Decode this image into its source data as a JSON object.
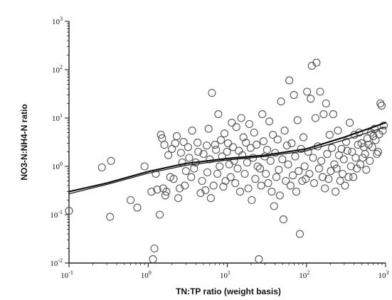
{
  "chart_data": {
    "type": "scatter",
    "title": "",
    "xlabel": "TN:TP ratio (weight basis)",
    "ylabel": "NO3-N:NH4-N ratio",
    "xscale": "log",
    "yscale": "log",
    "xlim": [
      0.1,
      1000
    ],
    "ylim": [
      0.01,
      1000
    ],
    "grid": false,
    "legend": "none",
    "x_ticks": [
      {
        "base": "10",
        "exp": "-1",
        "value": 0.1
      },
      {
        "base": "10",
        "exp": "0",
        "value": 1
      },
      {
        "base": "10",
        "exp": "1",
        "value": 10
      },
      {
        "base": "10",
        "exp": "2",
        "value": 100
      },
      {
        "base": "10",
        "exp": "3",
        "value": 1000
      }
    ],
    "y_ticks": [
      {
        "base": "10",
        "exp": "-2",
        "value": 0.01
      },
      {
        "base": "10",
        "exp": "-1",
        "value": 0.1
      },
      {
        "base": "10",
        "exp": "0",
        "value": 1
      },
      {
        "base": "10",
        "exp": "1",
        "value": 10
      },
      {
        "base": "10",
        "exp": "2",
        "value": 100
      },
      {
        "base": "10",
        "exp": "3",
        "value": 1000
      }
    ],
    "marker_color": "#555555",
    "line_color": "#111111",
    "series": [
      {
        "type": "scatter",
        "x": [
          0.1,
          0.26,
          0.33,
          0.34,
          0.6,
          0.73,
          0.9,
          1.1,
          1.15,
          1.2,
          1.25,
          1.3,
          1.4,
          1.45,
          1.5,
          1.55,
          1.6,
          1.65,
          1.7,
          1.8,
          1.9,
          2.0,
          2.1,
          2.2,
          2.3,
          2.4,
          2.5,
          2.6,
          2.7,
          2.8,
          2.9,
          3.0,
          3.2,
          3.3,
          3.5,
          3.6,
          3.8,
          4.0,
          4.2,
          4.3,
          4.6,
          4.8,
          5.0,
          5.3,
          5.5,
          5.6,
          5.8,
          6.0,
          6.2,
          6.4,
          6.7,
          7.0,
          7.2,
          7.5,
          7.7,
          8.0,
          8.3,
          8.6,
          8.9,
          9.2,
          9.5,
          9.9,
          10.2,
          10.6,
          11.0,
          11.4,
          11.8,
          12.2,
          12.6,
          13.0,
          13.5,
          14.0,
          14.5,
          15.0,
          15.5,
          16.0,
          16.6,
          17.2,
          17.8,
          18.4,
          19.0,
          19.7,
          20.4,
          21.1,
          21.8,
          22.6,
          23.4,
          24.2,
          25.0,
          25.9,
          26.8,
          27.7,
          28.7,
          29.7,
          30.7,
          31.8,
          32.9,
          34.0,
          35.2,
          36.4,
          37.7,
          39.0,
          40.3,
          41.7,
          43.2,
          44.7,
          46.2,
          47.8,
          49.5,
          51.2,
          53.0,
          54.8,
          56.7,
          58.7,
          60.7,
          62.8,
          65.0,
          67.3,
          69.6,
          72.0,
          74.5,
          77.1,
          79.8,
          82.6,
          85.5,
          88.5,
          91.6,
          94.8,
          98.1,
          102,
          105,
          109,
          113,
          117,
          121,
          125,
          130,
          134,
          139,
          144,
          149,
          154,
          160,
          165,
          171,
          177,
          183,
          190,
          196,
          203,
          210,
          218,
          225,
          233,
          241,
          250,
          258,
          267,
          277,
          286,
          296,
          307,
          318,
          329,
          340,
          352,
          365,
          377,
          391,
          404,
          418,
          433,
          448,
          464,
          480,
          497,
          514,
          532,
          551,
          570,
          590,
          611,
          632,
          654,
          677,
          700,
          725,
          750,
          776,
          803,
          830,
          860,
          890,
          920,
          950
        ],
        "y": [
          0.12,
          0.95,
          0.09,
          1.3,
          0.2,
          0.14,
          1.0,
          0.3,
          0.012,
          0.02,
          0.7,
          0.33,
          0.1,
          4.5,
          3.8,
          0.35,
          2.8,
          0.25,
          0.3,
          1.7,
          0.6,
          2.3,
          0.55,
          3.0,
          4.2,
          0.22,
          0.35,
          1.9,
          1.2,
          3.2,
          0.4,
          0.8,
          2.5,
          1.5,
          0.6,
          5.5,
          0.9,
          1.2,
          3.1,
          2.0,
          0.28,
          0.5,
          1.8,
          0.32,
          2.7,
          0.75,
          6.0,
          1.4,
          0.22,
          33.0,
          0.4,
          2.8,
          2.2,
          0.7,
          12.0,
          1.0,
          3.5,
          1.6,
          0.38,
          4.8,
          0.5,
          2.0,
          3.0,
          1.1,
          0.6,
          8.0,
          2.5,
          1.3,
          0.45,
          6.5,
          0.9,
          2.1,
          0.3,
          10.0,
          1.7,
          4.0,
          0.7,
          3.1,
          1.2,
          0.35,
          7.5,
          2.4,
          0.2,
          1.5,
          5.0,
          0.55,
          2.8,
          1.0,
          0.012,
          0.9,
          0.4,
          12.0,
          3.3,
          1.6,
          0.7,
          2.2,
          0.45,
          8.5,
          1.3,
          0.3,
          4.5,
          0.15,
          1.9,
          0.6,
          3.6,
          0.85,
          0.25,
          22.0,
          1.4,
          0.08,
          5.5,
          0.5,
          2.7,
          1.1,
          60.0,
          0.4,
          3.0,
          0.65,
          30.0,
          1.6,
          0.3,
          9.0,
          0.8,
          0.04,
          2.3,
          0.5,
          4.0,
          1.0,
          0.55,
          35.0,
          2.0,
          0.7,
          25.0,
          120.0,
          1.5,
          0.45,
          10.0,
          140.0,
          2.6,
          0.9,
          35.0,
          1.3,
          0.6,
          12.0,
          0.35,
          20.0,
          1.8,
          0.55,
          4.5,
          0.8,
          2.4,
          12.0,
          1.1,
          0.3,
          0.9,
          5.5,
          1.7,
          0.5,
          2.3,
          0.7,
          1.4,
          0.4,
          3.2,
          2.1,
          0.6,
          8.0,
          1.0,
          2.0,
          0.6,
          4.5,
          1.5,
          0.9,
          2.8,
          5.0,
          1.1,
          3.0,
          1.5,
          2.5,
          1.8,
          0.85,
          3.8,
          2.8,
          1.3,
          5.0,
          2.5,
          4.2,
          6.0,
          3.5,
          1.8,
          2.0,
          4.6,
          20.0,
          18.0,
          5.5,
          7.0
        ]
      },
      {
        "type": "line",
        "name": "",
        "x": [
          0.1,
          0.3,
          1,
          3,
          10,
          30,
          100,
          300,
          1000
        ],
        "y": [
          0.3,
          0.45,
          0.78,
          1.15,
          1.45,
          1.7,
          2.3,
          4.0,
          8.0
        ],
        "stroke_width": 2.2
      },
      {
        "type": "line",
        "name": "",
        "x": [
          0.1,
          0.3,
          1,
          3,
          10,
          30,
          100,
          300,
          1000
        ],
        "y": [
          0.27,
          0.42,
          0.72,
          1.05,
          1.35,
          1.6,
          2.1,
          3.5,
          6.5
        ],
        "stroke_width": 1.2
      }
    ]
  }
}
